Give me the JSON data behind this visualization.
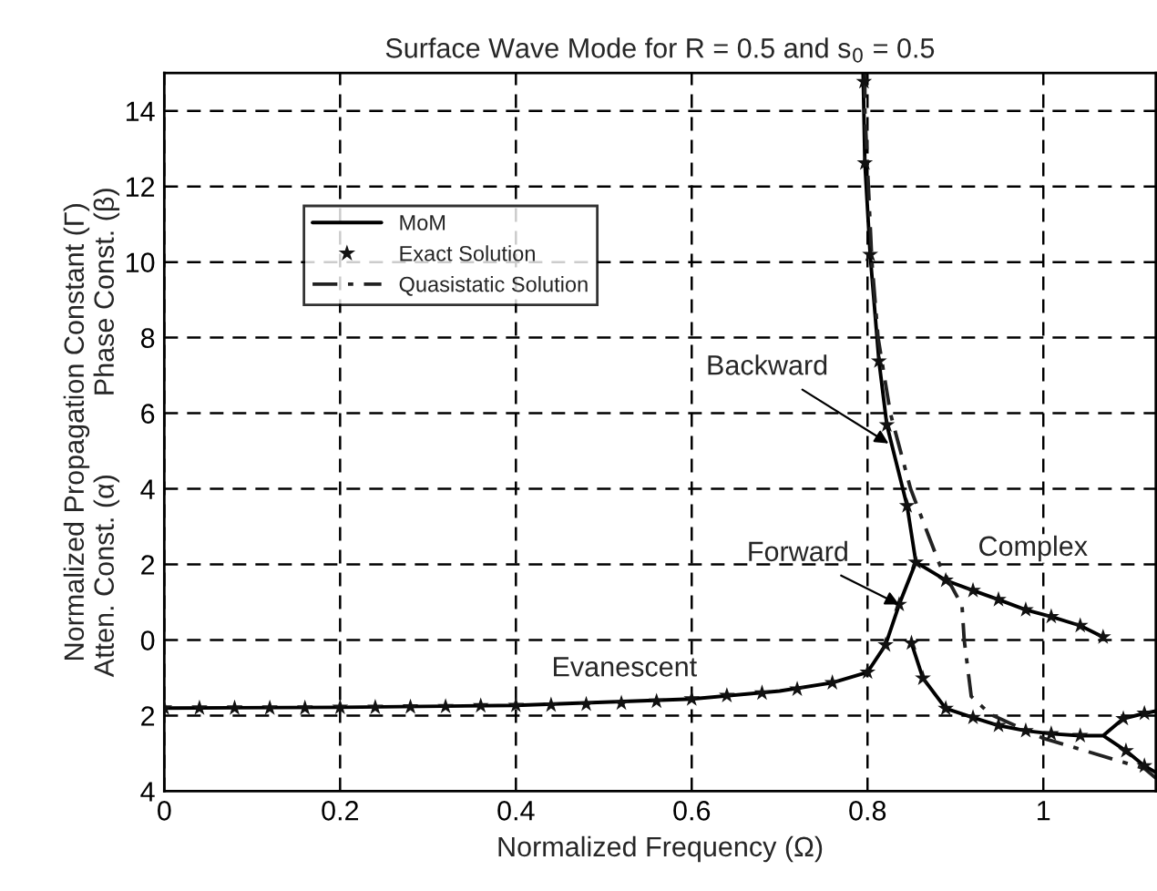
{
  "chart_data": {
    "type": "line",
    "title": "Surface Wave Mode for R = 0.5 and s$_{0}$ = 0.5",
    "xlabel": "Normalized Frequency (Ω)",
    "ylabel": "Normalized Propagation Constant (Γ)\nAtten. Const. (α)          Phase Const. (β)",
    "xlim": [
      0,
      1.128
    ],
    "xticks": [
      0,
      0.2,
      0.4,
      0.6,
      0.8,
      1
    ],
    "ylim": [
      -4,
      15
    ],
    "yticks": [
      {
        "value": -4,
        "label": "4"
      },
      {
        "value": -2,
        "label": "2"
      },
      0,
      2,
      4,
      6,
      8,
      10,
      12,
      14
    ],
    "grid": true,
    "legend": "top left",
    "series": [
      {
        "name": "MoM",
        "type": "line",
        "color": "#000000",
        "line_style": "solid",
        "marker": "none",
        "x": [
          0,
          0.2,
          0.4,
          0.6,
          0.7,
          0.76,
          0.8,
          0.8205,
          0.836,
          0.855,
          0.845,
          0.822,
          0.813,
          0.803,
          0.797,
          0.795,
          null,
          0.855,
          0.889,
          0.92,
          0.949,
          0.98,
          1.009,
          1.042,
          1.068,
          null,
          0.85,
          0.863,
          0.889,
          0.92,
          0.949,
          0.98,
          1.009,
          1.042,
          1.068,
          1.091,
          1.115,
          1.128,
          null,
          1.068,
          1.094,
          1.115,
          1.128
        ],
        "values": [
          -1.8,
          -1.78,
          -1.73,
          -1.56,
          -1.35,
          -1.13,
          -0.85,
          -0.13,
          0.94,
          2.06,
          3.55,
          5.69,
          7.38,
          10.2,
          12.62,
          15,
          null,
          2.06,
          1.58,
          1.31,
          1.07,
          0.8,
          0.62,
          0.38,
          0.08,
          null,
          -0.08,
          -1.01,
          -1.81,
          -2.05,
          -2.26,
          -2.4,
          -2.48,
          -2.53,
          -2.53,
          -2.08,
          -1.94,
          -1.88,
          null,
          -2.53,
          -2.93,
          -3.33,
          -3.5
        ]
      },
      {
        "name": "Exact Solution",
        "type": "scatter",
        "color": "#111111",
        "marker": "star",
        "x": [
          0,
          0.04,
          0.08,
          0.12,
          0.16,
          0.2,
          0.24,
          0.28,
          0.32,
          0.36,
          0.4,
          0.44,
          0.48,
          0.52,
          0.56,
          0.6,
          0.64,
          0.68,
          0.72,
          0.76,
          0.8,
          0.8205,
          0.836,
          0.855,
          0.845,
          0.822,
          0.813,
          0.803,
          0.797,
          0.796,
          0.889,
          0.92,
          0.949,
          0.98,
          1.009,
          1.042,
          1.068,
          0.85,
          0.863,
          0.889,
          0.92,
          0.949,
          0.98,
          1.009,
          1.042,
          1.091,
          1.115,
          1.094,
          1.115
        ],
        "values": [
          -1.8,
          -1.8,
          -1.8,
          -1.8,
          -1.8,
          -1.78,
          -1.78,
          -1.77,
          -1.76,
          -1.74,
          -1.73,
          -1.72,
          -1.7,
          -1.67,
          -1.62,
          -1.56,
          -1.47,
          -1.4,
          -1.3,
          -1.13,
          -0.85,
          -0.13,
          0.94,
          2.06,
          3.55,
          5.69,
          7.38,
          10.2,
          12.62,
          14.77,
          1.58,
          1.31,
          1.07,
          0.8,
          0.62,
          0.38,
          0.08,
          -0.08,
          -1.01,
          -1.81,
          -2.05,
          -2.26,
          -2.4,
          -2.48,
          -2.53,
          -2.08,
          -1.94,
          -2.93,
          -3.33
        ]
      },
      {
        "name": "Quasistatic Solution",
        "type": "line",
        "color": "#222222",
        "line_style": "dashdot",
        "marker": "none",
        "x": [
          0.797,
          0.797,
          0.805,
          0.812,
          0.826,
          0.849,
          0.882,
          0.9075,
          0.91,
          0.918,
          0.94,
          1.0,
          1.115,
          1.128
        ],
        "values": [
          15,
          14,
          10,
          8,
          6,
          4,
          2,
          0.91,
          0,
          -1.49,
          -1.97,
          -2.6,
          -3.4,
          -3.65
        ]
      }
    ],
    "annotations": [
      {
        "text": "Backward",
        "x": 0.824,
        "y": 5.2
      },
      {
        "text": "Forward",
        "x": 0.836,
        "y": 0.94
      },
      "Complex",
      "Evanescent"
    ]
  }
}
